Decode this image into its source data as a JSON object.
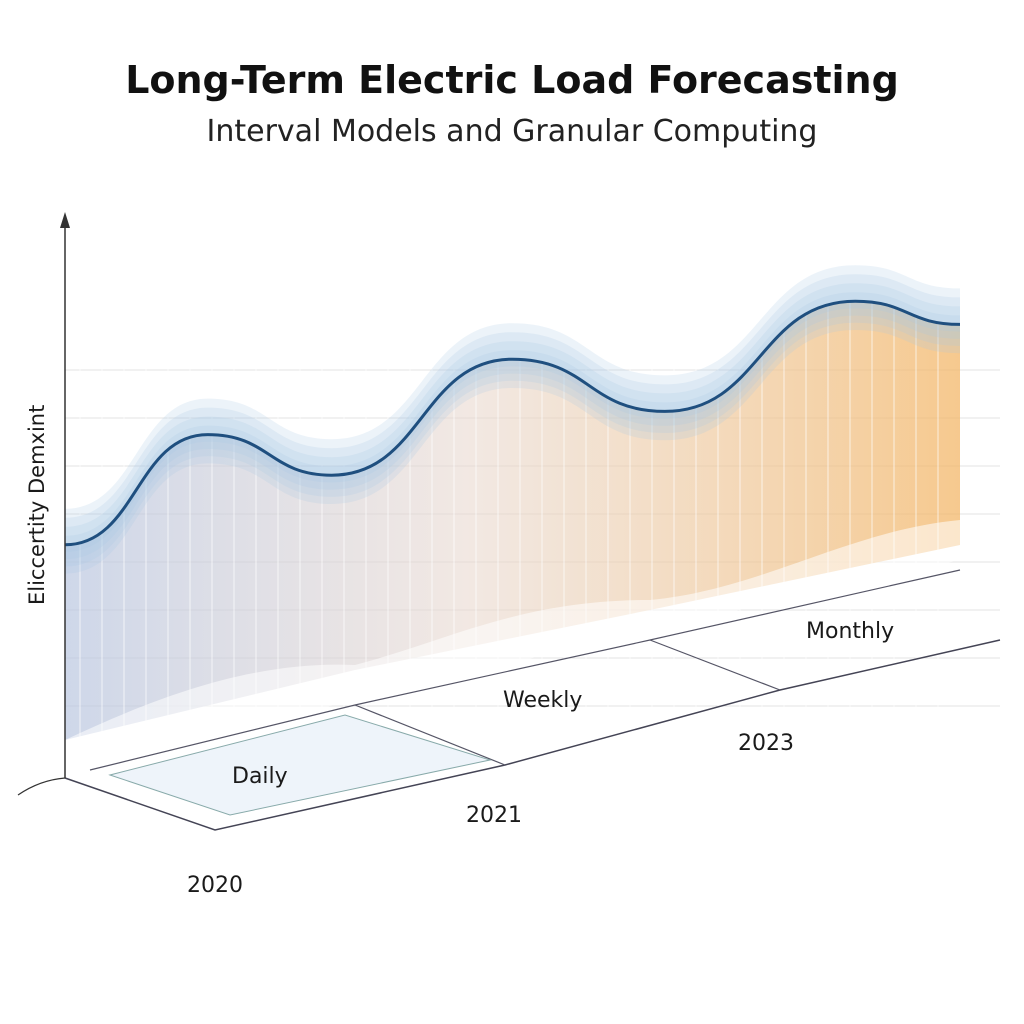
{
  "title": "Long-Term Electric Load Forecasting",
  "subtitle": "Interval Models and Granular Computing",
  "chart_data": {
    "type": "area",
    "title": "Long-Term Electric Load Forecasting",
    "subtitle": "Interval Models and Granular Computing",
    "ylabel": "Eliccertity Demxint",
    "xlabel": "",
    "x_tick_labels": [
      "2020",
      "2021",
      "2023"
    ],
    "granularity_labels": [
      "Daily",
      "Weekly",
      "Monthly"
    ],
    "grid": true,
    "series": [
      {
        "x": [
          0,
          1.5,
          2.8,
          4.7,
          6.3,
          8.3,
          9.4
        ],
        "values": [
          44,
          63,
          56,
          76,
          67,
          86,
          82
        ]
      }
    ],
    "interval_band_width": 9,
    "colors": {
      "line": "#1f4f7f",
      "band": "#a9c8e3",
      "lower": "#f2b36a",
      "axis": "#333333"
    }
  }
}
